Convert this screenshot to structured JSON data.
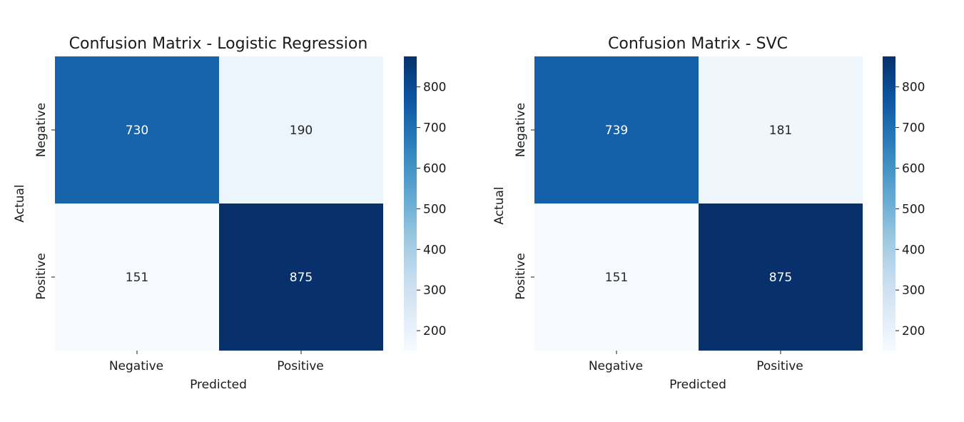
{
  "chart_data": [
    {
      "type": "heatmap",
      "title": "Confusion Matrix - Logistic Regression",
      "xlabel": "Predicted",
      "ylabel": "Actual",
      "x_categories": [
        "Negative",
        "Positive"
      ],
      "y_categories": [
        "Negative",
        "Positive"
      ],
      "values": [
        [
          730,
          190
        ],
        [
          151,
          875
        ]
      ],
      "colormap": "Blues",
      "colorbar": {
        "range": [
          151,
          875
        ],
        "ticks": [
          200,
          300,
          400,
          500,
          600,
          700,
          800
        ]
      }
    },
    {
      "type": "heatmap",
      "title": "Confusion Matrix - SVC",
      "xlabel": "Predicted",
      "ylabel": "Actual",
      "x_categories": [
        "Negative",
        "Positive"
      ],
      "y_categories": [
        "Negative",
        "Positive"
      ],
      "values": [
        [
          739,
          181
        ],
        [
          151,
          875
        ]
      ],
      "colormap": "Blues",
      "colorbar": {
        "range": [
          151,
          875
        ],
        "ticks": [
          200,
          300,
          400,
          500,
          600,
          700,
          800
        ]
      }
    }
  ]
}
